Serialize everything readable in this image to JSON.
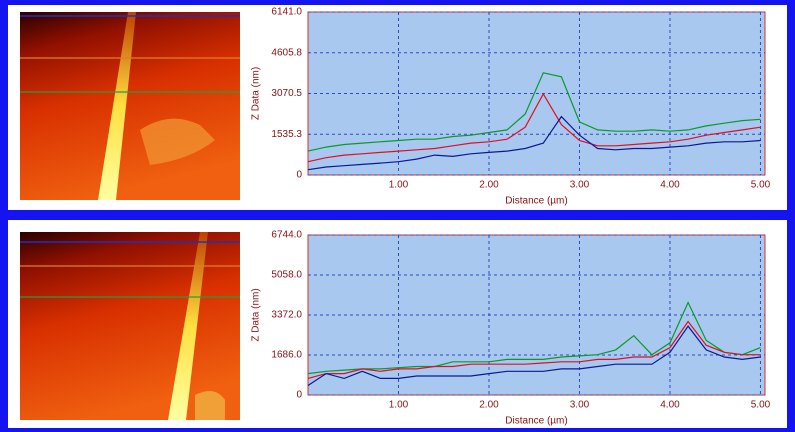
{
  "chart_data": [
    {
      "type": "line",
      "x_label": "Distance (µm)",
      "y_label": "Z Data (nm)",
      "x": [
        0,
        0.2,
        0.4,
        0.6,
        0.8,
        1.0,
        1.2,
        1.4,
        1.6,
        1.8,
        2.0,
        2.2,
        2.4,
        2.6,
        2.8,
        3.0,
        3.2,
        3.4,
        3.6,
        3.8,
        4.0,
        4.2,
        4.4,
        4.6,
        4.8,
        5.0
      ],
      "xlim": [
        0,
        5.05
      ],
      "xticks": [
        {
          "value": 1,
          "label": "1.00"
        },
        {
          "value": 2,
          "label": "2.00"
        },
        {
          "value": 3,
          "label": "3.00"
        },
        {
          "value": 4,
          "label": "4.00"
        },
        {
          "value": 5,
          "label": "5.00"
        }
      ],
      "ylim": [
        0,
        6141
      ],
      "yticks": [
        0,
        {
          "value": 1535.3,
          "label": "1535.3"
        },
        {
          "value": 3070.5,
          "label": "3070.5"
        },
        {
          "value": 4605.8,
          "label": "4605.8"
        },
        {
          "value": 6141,
          "label": "6141.0"
        }
      ],
      "grid": true,
      "series": [
        {
          "color": "#0a9a2a",
          "values": [
            900,
            1050,
            1150,
            1200,
            1250,
            1300,
            1350,
            1350,
            1450,
            1500,
            1600,
            1700,
            2300,
            3850,
            3700,
            2000,
            1700,
            1650,
            1650,
            1700,
            1650,
            1700,
            1850,
            1950,
            2050,
            2100
          ]
        },
        {
          "color": "#e01020",
          "values": [
            500,
            650,
            750,
            800,
            850,
            900,
            950,
            1000,
            1100,
            1200,
            1250,
            1350,
            1800,
            3050,
            1900,
            1300,
            1100,
            1100,
            1150,
            1200,
            1250,
            1350,
            1500,
            1600,
            1700,
            1800
          ]
        },
        {
          "color": "#101890",
          "values": [
            200,
            300,
            350,
            400,
            450,
            500,
            600,
            750,
            700,
            800,
            850,
            900,
            1000,
            1200,
            2200,
            1500,
            1000,
            950,
            1000,
            1000,
            1050,
            1100,
            1200,
            1250,
            1250,
            1300
          ]
        }
      ]
    },
    {
      "type": "line",
      "x_label": "Distance (µm)",
      "y_label": "Z Data (nm)",
      "x": [
        0,
        0.2,
        0.4,
        0.6,
        0.8,
        1.0,
        1.2,
        1.4,
        1.6,
        1.8,
        2.0,
        2.2,
        2.4,
        2.6,
        2.8,
        3.0,
        3.2,
        3.4,
        3.6,
        3.8,
        4.0,
        4.2,
        4.4,
        4.6,
        4.8,
        5.0
      ],
      "xlim": [
        0,
        5.05
      ],
      "xticks": [
        {
          "value": 1,
          "label": "1.00"
        },
        {
          "value": 2,
          "label": "2.00"
        },
        {
          "value": 3,
          "label": "3.00"
        },
        {
          "value": 4,
          "label": "4.00"
        },
        {
          "value": 5,
          "label": "5.00"
        }
      ],
      "ylim": [
        0,
        6744
      ],
      "yticks": [
        0,
        {
          "value": 1686,
          "label": "1686.0"
        },
        {
          "value": 3372,
          "label": "3372.0"
        },
        {
          "value": 5058,
          "label": "5058.0"
        },
        {
          "value": 6744,
          "label": "6744.0"
        }
      ],
      "grid": true,
      "series": [
        {
          "color": "#0a9a2a",
          "values": [
            900,
            1000,
            1050,
            1100,
            1100,
            1150,
            1200,
            1200,
            1400,
            1400,
            1400,
            1500,
            1500,
            1500,
            1600,
            1650,
            1700,
            1900,
            2500,
            1700,
            2200,
            3900,
            2300,
            1800,
            1700,
            2000
          ]
        },
        {
          "color": "#e01020",
          "values": [
            700,
            900,
            900,
            1100,
            1000,
            1100,
            1100,
            1200,
            1200,
            1300,
            1300,
            1300,
            1300,
            1350,
            1400,
            1400,
            1500,
            1500,
            1600,
            1600,
            2000,
            3100,
            2100,
            1800,
            1700,
            1700
          ]
        },
        {
          "color": "#101890",
          "values": [
            400,
            900,
            700,
            1000,
            700,
            700,
            800,
            800,
            800,
            800,
            900,
            1000,
            1000,
            1000,
            1100,
            1100,
            1200,
            1300,
            1300,
            1300,
            1800,
            2900,
            1900,
            1600,
            1500,
            1600
          ]
        }
      ]
    }
  ]
}
